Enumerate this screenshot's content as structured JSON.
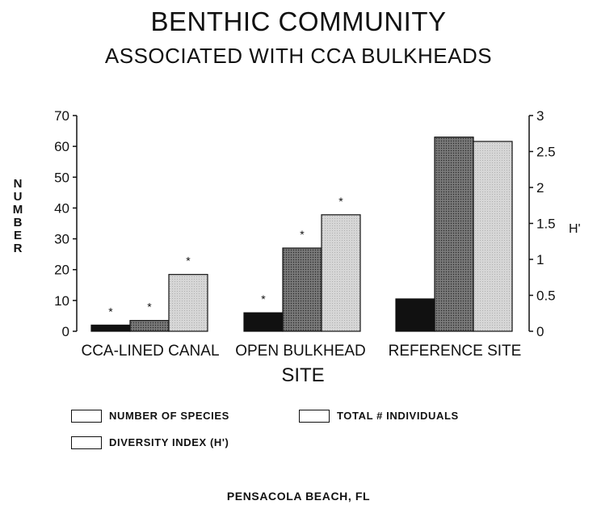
{
  "title": "BENTHIC COMMUNITY",
  "subtitle": "ASSOCIATED WITH CCA BULKHEADS",
  "footer": "PENSACOLA BEACH, FL",
  "chart_data": {
    "type": "bar",
    "categories": [
      "CCA-LINED CANAL",
      "OPEN BULKHEAD",
      "REFERENCE SITE"
    ],
    "xlabel": "SITE",
    "ylabel": "NUMBER",
    "y2label": "H'",
    "ylim": [
      0,
      70
    ],
    "yticks": [
      0,
      10,
      20,
      30,
      40,
      50,
      60,
      70
    ],
    "y2lim": [
      0,
      3
    ],
    "y2ticks": [
      "0",
      "0.5",
      "1",
      "1.5",
      "2",
      "2.5",
      "3"
    ],
    "significance_marker": "*",
    "series": [
      {
        "name": "NUMBER OF SPECIES",
        "axis": "left",
        "values": [
          2,
          6,
          10.5
        ],
        "color": "#111111",
        "significant": [
          true,
          true,
          false
        ]
      },
      {
        "name": "TOTAL # INDIVIDUALS",
        "axis": "left",
        "values": [
          3.5,
          27,
          63
        ],
        "color": "#6e6e6e",
        "significant": [
          true,
          true,
          false
        ]
      },
      {
        "name": "DIVERSITY INDEX (H')",
        "axis": "right",
        "values": [
          0.79,
          1.62,
          2.64
        ],
        "color": "#d8d8d8",
        "significant": [
          true,
          true,
          false
        ]
      }
    ],
    "legend_position": "bottom"
  }
}
